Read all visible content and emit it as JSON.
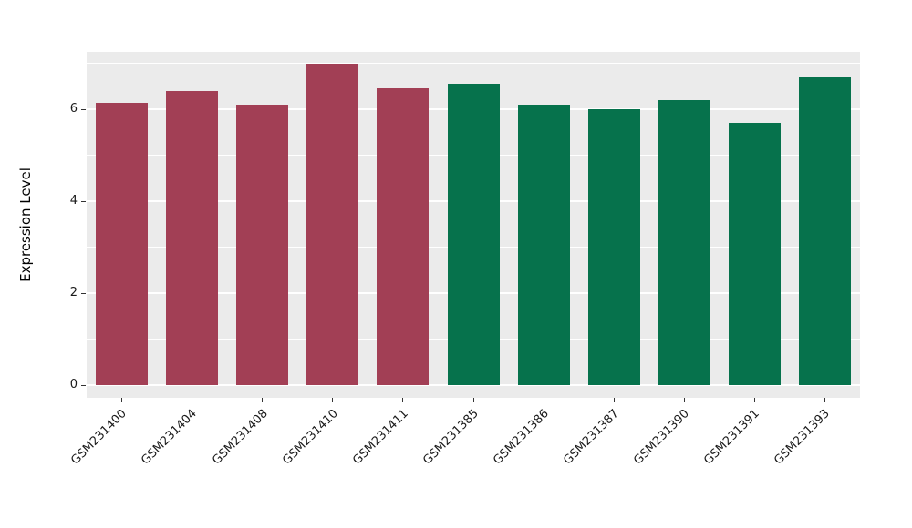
{
  "chart_data": {
    "type": "bar",
    "title": "",
    "xlabel": "",
    "ylabel": "Expression Level",
    "categories": [
      "GSM231400",
      "GSM231404",
      "GSM231408",
      "GSM231410",
      "GSM231411",
      "GSM231385",
      "GSM231386",
      "GSM231387",
      "GSM231390",
      "GSM231391",
      "GSM231393"
    ],
    "values": [
      6.15,
      6.4,
      6.1,
      7.0,
      6.45,
      6.55,
      6.1,
      6.0,
      6.2,
      5.7,
      6.7
    ],
    "bar_colors": [
      "#a23f55",
      "#a23f55",
      "#a23f55",
      "#a23f55",
      "#a23f55",
      "#06724c",
      "#06724c",
      "#06724c",
      "#06724c",
      "#06724c",
      "#06724c"
    ],
    "ylim": [
      0,
      7.25
    ],
    "yticks": [
      0,
      2,
      4,
      6
    ],
    "minor_yticks": [
      1,
      3,
      5,
      7
    ],
    "grid": true,
    "legend": "none",
    "panel_bg": "#ebebeb",
    "grid_color": "#ffffff"
  }
}
